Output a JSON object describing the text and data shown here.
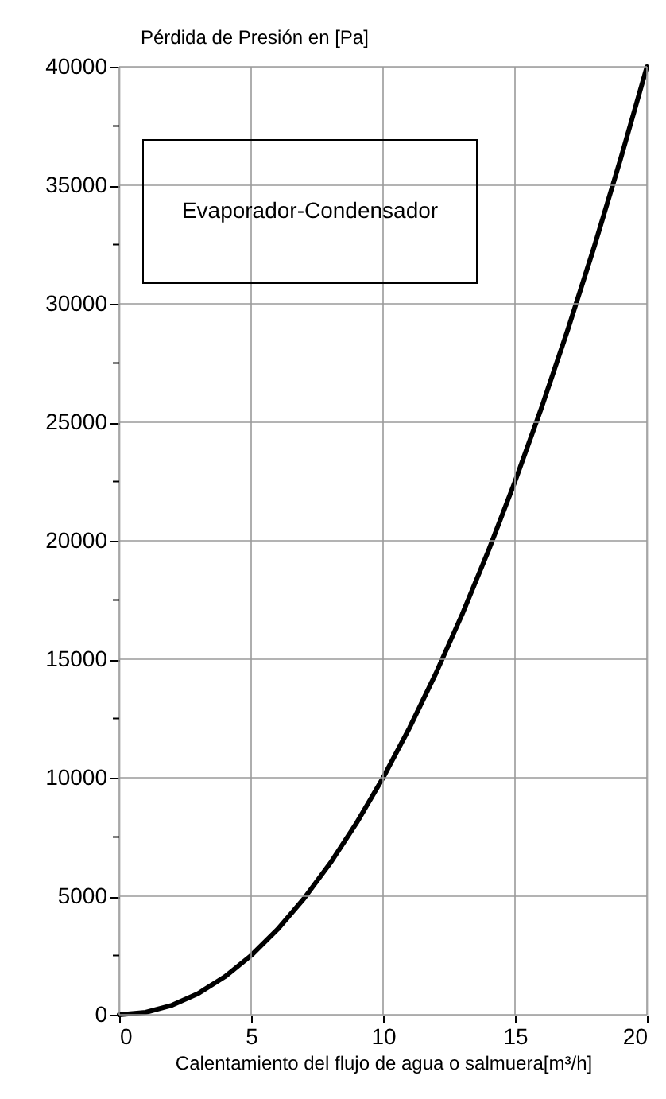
{
  "chart_data": {
    "type": "line",
    "ylabel": "Pérdida de Presión en  [Pa]",
    "xlabel": "Calentamiento del flujo de agua o salmuera[m³/h]",
    "annotations": [
      "Evaporador-Condensador"
    ],
    "x": [
      0,
      1,
      2,
      3,
      4,
      5,
      6,
      7,
      8,
      9,
      10,
      11,
      12,
      13,
      14,
      15,
      16,
      17,
      18,
      19,
      20
    ],
    "series": [
      {
        "color": "#000000",
        "values": [
          0,
          100,
          400,
          900,
          1600,
          2500,
          3600,
          4900,
          6400,
          8100,
          10000,
          12100,
          14400,
          16900,
          19600,
          22500,
          25600,
          28900,
          32400,
          36100,
          40000
        ]
      }
    ],
    "xlim": [
      0,
      20
    ],
    "xticks": [
      0,
      5,
      10,
      15,
      20
    ],
    "ylim": [
      0,
      40000
    ],
    "yticks": [
      0,
      {
        "value": 2500,
        "label": null
      },
      5000,
      {
        "value": 7500,
        "label": null
      },
      10000,
      {
        "value": 12500,
        "label": null
      },
      15000,
      {
        "value": 17500,
        "label": null
      },
      20000,
      {
        "value": 22500,
        "label": null
      },
      25000,
      {
        "value": 27500,
        "label": null
      },
      30000,
      {
        "value": 32500,
        "label": null
      },
      35000,
      {
        "value": 37500,
        "label": null
      },
      40000
    ],
    "grid": true,
    "marker": "none",
    "line_style": "solid"
  }
}
